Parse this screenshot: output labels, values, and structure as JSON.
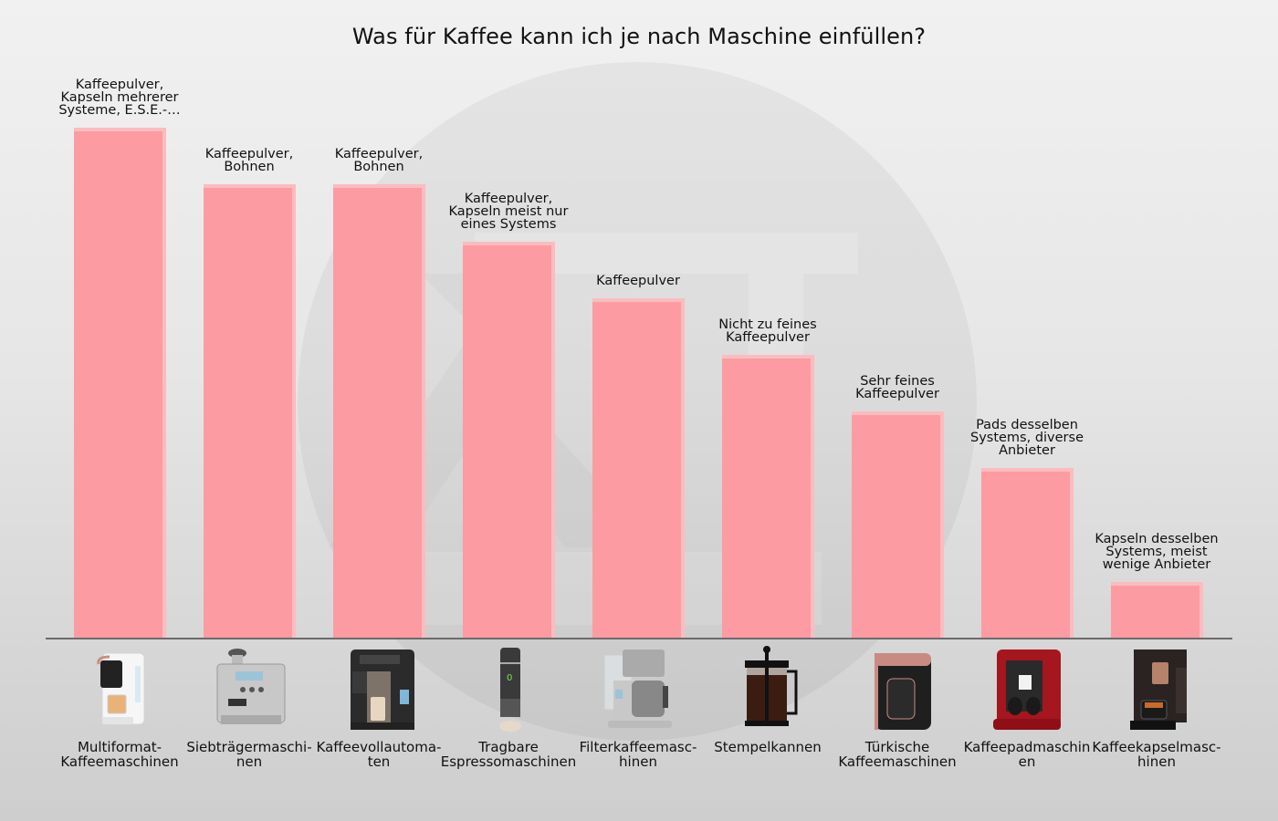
{
  "chart_data": {
    "type": "bar",
    "title": "Was für Kaffee kann ich je nach Maschine einfüllen?",
    "xlabel": "",
    "ylabel": "",
    "grid": false,
    "legend": null,
    "categories": [
      "Multiformat-Kaffeemaschinen",
      "Siebträgermaschinen",
      "Kaffeevollautomaten",
      "Tragbare Espressomaschinen",
      "Filterkaffeemaschinen",
      "Stempelkannen",
      "Türkische Kaffeemaschinen",
      "Kaffeepadmaschinen",
      "Kaffeekapselmaschinen"
    ],
    "values": [
      9,
      8,
      8,
      7,
      6,
      5,
      4,
      3,
      1
    ],
    "value_note": "No y-axis shown; values are relative bar heights estimated from pixels (≈62px per unit).",
    "data_labels": [
      "Kaffeepulver, Kapseln mehrerer Systeme, E.S.E.-…",
      "Kaffeepulver, Bohnen",
      "Kaffeepulver, Bohnen",
      "Kaffeepulver, Kapseln meist nur eines Systems",
      "Kaffeepulver",
      "Nicht zu feines Kaffeepulver",
      "Sehr feines Kaffeepulver",
      "Pads desselben Systems, diverse Anbieter",
      "Kapseln desselben Systems, meist wenige Anbieter"
    ],
    "ylim": [
      0,
      10
    ],
    "colors": {
      "bar_fill": "#fc9ba2",
      "bar_edge": "#fbbcbf",
      "axis": "#6b6b6b"
    }
  },
  "header": {
    "title": "Was für Kaffee kann ich je nach Maschine einfüllen?"
  },
  "bars": [
    {
      "label_lines": [
        "Kaffeepulver,",
        "Kapseln mehrerer",
        "Systeme, E.S.E.-…"
      ],
      "category_display": "Multiformat-\nKaffeemaschinen",
      "product_icon": "multiformat-coffee-machine-icon"
    },
    {
      "label_lines": [
        "Kaffeepulver,",
        "Bohnen"
      ],
      "category_display": "Siebträgermaschi-\nnen",
      "product_icon": "espresso-portafilter-machine-icon"
    },
    {
      "label_lines": [
        "Kaffeepulver,",
        "Bohnen"
      ],
      "category_display": "Kaffeevollautoma-\nten",
      "product_icon": "fully-automatic-coffee-machine-icon"
    },
    {
      "label_lines": [
        "Kaffeepulver,",
        "Kapseln meist nur",
        "eines Systems"
      ],
      "category_display": "Tragbare\nEspressomaschinen",
      "product_icon": "portable-espresso-maker-icon"
    },
    {
      "label_lines": [
        "Kaffeepulver"
      ],
      "category_display": "Filterkaffeemasc-\nhinen",
      "product_icon": "filter-coffee-machine-icon"
    },
    {
      "label_lines": [
        "Nicht zu feines",
        "Kaffeepulver"
      ],
      "category_display": "Stempelkannen",
      "product_icon": "french-press-icon"
    },
    {
      "label_lines": [
        "Sehr feines",
        "Kaffeepulver"
      ],
      "category_display": "Türkische\nKaffeemaschinen",
      "product_icon": "turkish-coffee-machine-icon"
    },
    {
      "label_lines": [
        "Pads desselben",
        "Systems, diverse",
        "Anbieter"
      ],
      "category_display": "Kaffeepadmaschin\nen",
      "product_icon": "coffee-pad-machine-icon"
    },
    {
      "label_lines": [
        "Kapseln desselben",
        "Systems, meist",
        "wenige Anbieter"
      ],
      "category_display": "Kaffeekapselmasc-\nhinen",
      "product_icon": "coffee-capsule-machine-icon"
    }
  ]
}
